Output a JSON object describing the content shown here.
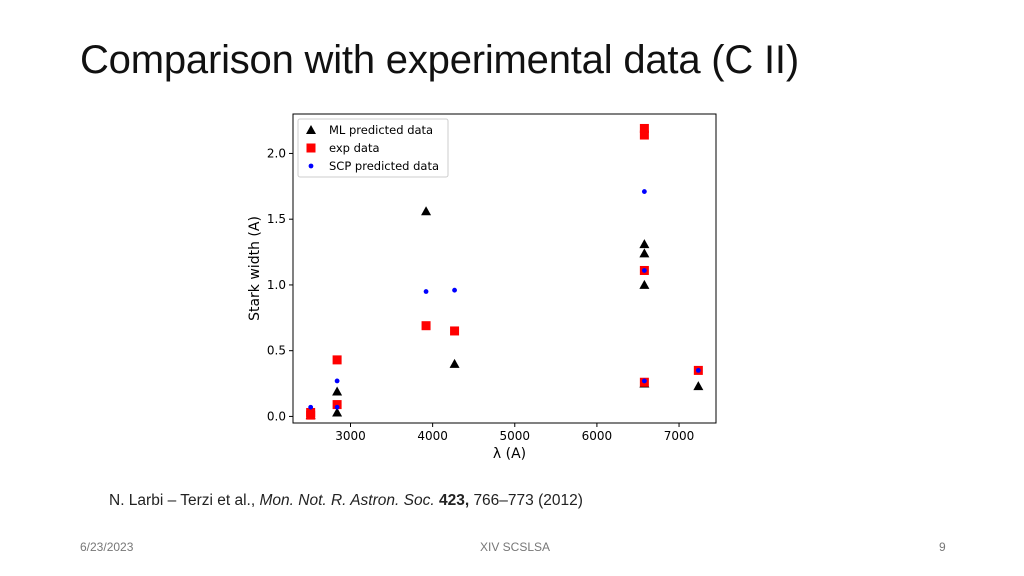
{
  "slide": {
    "title": "Comparison with experimental data (C II)"
  },
  "citation": {
    "authors": "N. Larbi – Terzi et al., ",
    "journal": "Mon. Not. R. Astron. Soc.",
    "volume": "423,",
    "pages_year": "766–773 (2012)"
  },
  "footer": {
    "date": "6/23/2023",
    "conference": "XIV SCSLSA",
    "page": "9"
  },
  "chart_data": {
    "type": "scatter",
    "xlabel": "λ (A)",
    "ylabel": "Stark width (A)",
    "xlim": [
      2300,
      7450
    ],
    "ylim": [
      -0.05,
      2.3
    ],
    "xticks": [
      3000,
      4000,
      5000,
      6000,
      7000
    ],
    "yticks": [
      0.0,
      0.5,
      1.0,
      1.5,
      2.0
    ],
    "ytick_labels": [
      "0.0",
      "0.5",
      "1.0",
      "1.5",
      "2.0"
    ],
    "grid": false,
    "legend_position": "top-left",
    "series": [
      {
        "name": "ML predicted data",
        "marker": "triangle",
        "color": "#000000",
        "points": [
          [
            2515,
            0.01
          ],
          [
            2837,
            0.19
          ],
          [
            2837,
            0.03
          ],
          [
            3920,
            1.56
          ],
          [
            4267,
            0.4
          ],
          [
            6578,
            1.31
          ],
          [
            6578,
            1.24
          ],
          [
            6578,
            1.0
          ],
          [
            6578,
            0.25
          ],
          [
            7235,
            0.23
          ]
        ]
      },
      {
        "name": "exp data",
        "marker": "square",
        "color": "#ff0000",
        "points": [
          [
            2515,
            0.03
          ],
          [
            2515,
            0.01
          ],
          [
            2837,
            0.43
          ],
          [
            2837,
            0.09
          ],
          [
            3920,
            0.69
          ],
          [
            4267,
            0.65
          ],
          [
            6578,
            2.19
          ],
          [
            6578,
            2.14
          ],
          [
            6578,
            1.11
          ],
          [
            6578,
            0.26
          ],
          [
            7235,
            0.35
          ]
        ]
      },
      {
        "name": "SCP predicted data",
        "marker": "dot",
        "color": "#0000ff",
        "points": [
          [
            2515,
            0.07
          ],
          [
            2837,
            0.27
          ],
          [
            2837,
            0.07
          ],
          [
            3920,
            0.95
          ],
          [
            4267,
            0.96
          ],
          [
            6578,
            1.71
          ],
          [
            6578,
            1.11
          ],
          [
            6578,
            0.27
          ],
          [
            7235,
            0.35
          ]
        ]
      }
    ]
  }
}
